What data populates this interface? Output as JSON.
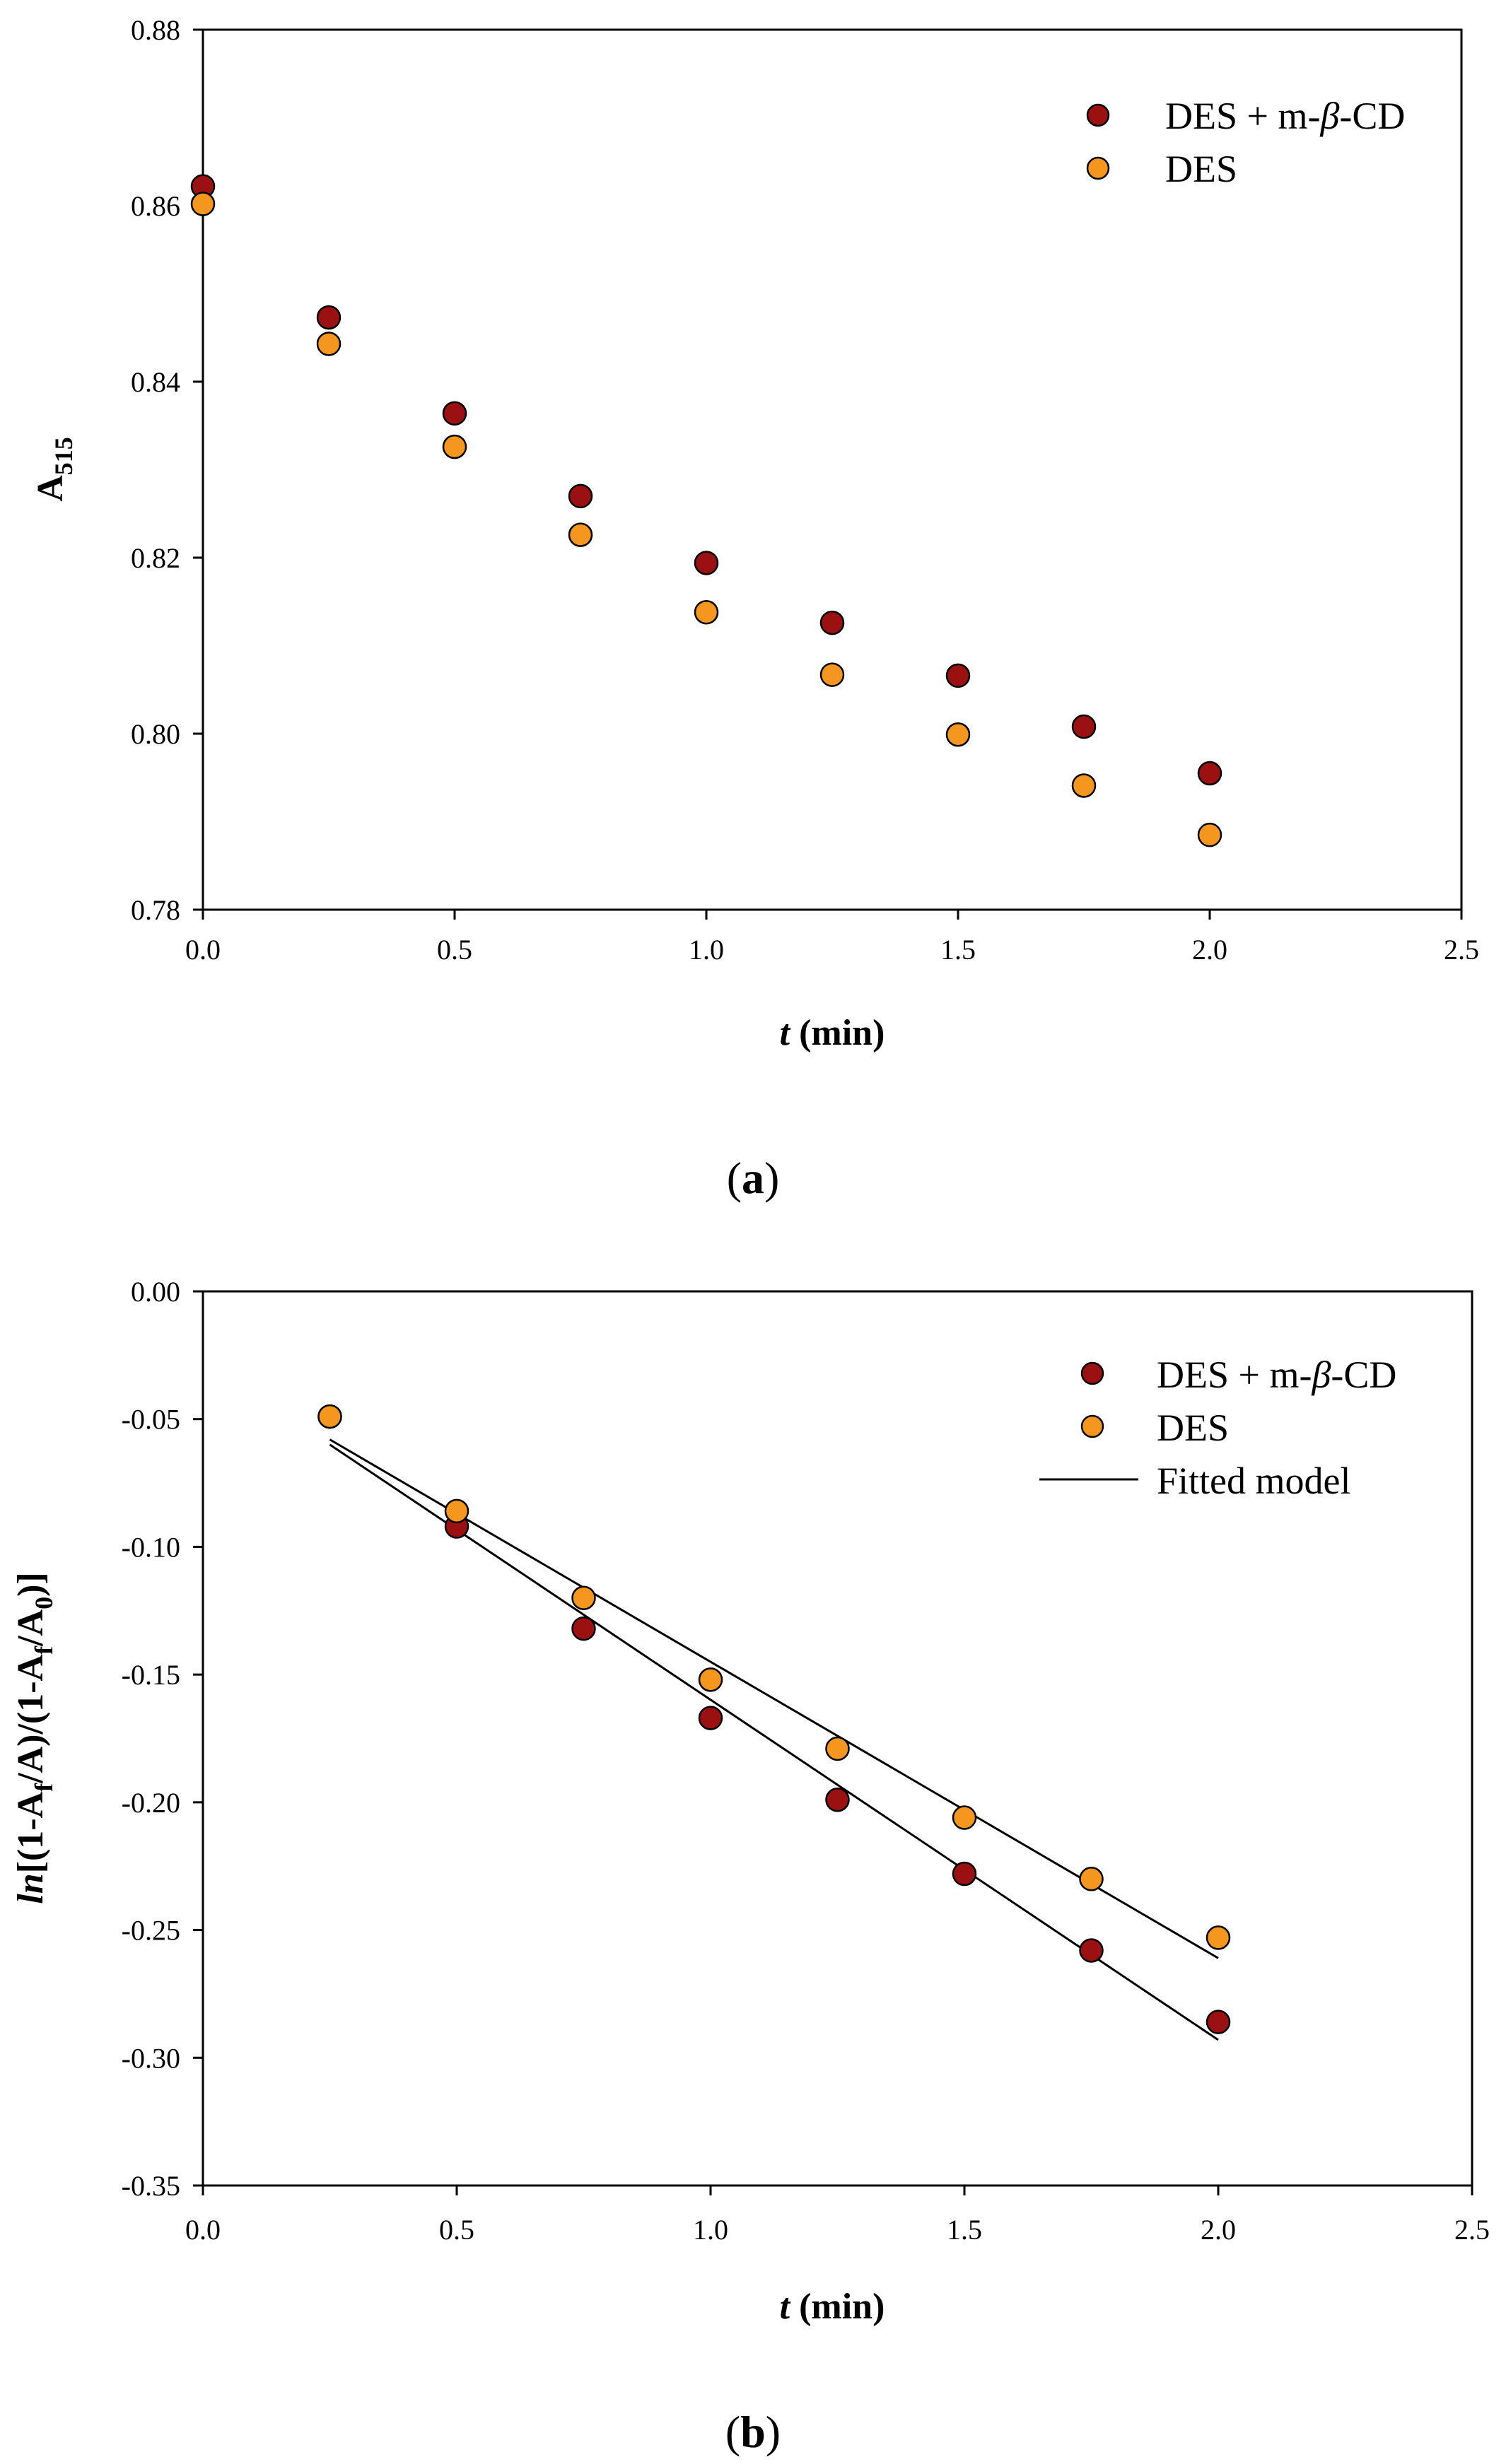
{
  "colors": {
    "series_dark": "#9b1111",
    "series_orange": "#f5961e",
    "marker_stroke": "#000000",
    "axis": "#000000",
    "fit_line": "#000000"
  },
  "chart_data": [
    {
      "type": "scatter",
      "caption_open": "(",
      "caption_letter": "a",
      "caption_close": ")",
      "xlabel_italic": "t",
      "xlabel_rest": " (min)",
      "ylabel_main": "A",
      "ylabel_sub": "515",
      "xlim": [
        0,
        2.5
      ],
      "ylim": [
        0.78,
        0.88
      ],
      "xticks": [
        "0.0",
        "0.5",
        "1.0",
        "1.5",
        "2.0",
        "2.5"
      ],
      "yticks": [
        "0.78",
        "0.80",
        "0.82",
        "0.84",
        "0.86",
        "0.88"
      ],
      "legend_position": "top-right",
      "x": [
        0,
        0.25,
        0.5,
        0.75,
        1.0,
        1.25,
        1.5,
        1.75,
        2.0
      ],
      "series": [
        {
          "name": "DES + m-β-CD",
          "legend_prefix": "DES + m-",
          "legend_greek": "β",
          "legend_suffix": "-CD",
          "color": "#9b1111",
          "values": [
            0.8622,
            0.8473,
            0.8364,
            0.827,
            0.8194,
            0.8126,
            0.8066,
            0.8008,
            0.7955
          ]
        },
        {
          "name": "DES",
          "legend_prefix": "DES",
          "legend_greek": "",
          "legend_suffix": "",
          "color": "#f5961e",
          "values": [
            0.8602,
            0.8443,
            0.8326,
            0.8226,
            0.8138,
            0.8067,
            0.7999,
            0.7941,
            0.7885
          ]
        }
      ]
    },
    {
      "type": "scatter",
      "caption_open": "(",
      "caption_letter": "b",
      "caption_close": ")",
      "xlabel_italic": "t",
      "xlabel_rest": " (min)",
      "ylabel_ln": "ln",
      "ylabel_p1": "[(1-A",
      "ylabel_s1": "f",
      "ylabel_p2": "/A)/(1-A",
      "ylabel_s2": "f",
      "ylabel_p3": "/A",
      "ylabel_s3": "0",
      "ylabel_p4": ")]",
      "xlim": [
        0,
        2.5
      ],
      "ylim": [
        -0.35,
        0.0
      ],
      "xticks": [
        "0.0",
        "0.5",
        "1.0",
        "1.5",
        "2.0",
        "2.5"
      ],
      "yticks": [
        "-0.35",
        "-0.30",
        "-0.25",
        "-0.20",
        "-0.15",
        "-0.10",
        "-0.05",
        "0.00"
      ],
      "legend_position": "top-right",
      "x": [
        0.25,
        0.5,
        0.75,
        1.0,
        1.25,
        1.5,
        1.75,
        2.0
      ],
      "series": [
        {
          "name": "DES + m-β-CD",
          "legend_prefix": "DES + m-",
          "legend_greek": "β",
          "legend_suffix": "-CD",
          "color": "#9b1111",
          "values": [
            -0.049,
            -0.092,
            -0.132,
            -0.167,
            -0.199,
            -0.228,
            -0.258,
            -0.286
          ],
          "fit": {
            "x": [
              0.25,
              2.0
            ],
            "y": [
              -0.06,
              -0.293
            ]
          }
        },
        {
          "name": "DES",
          "legend_prefix": "DES",
          "legend_greek": "",
          "legend_suffix": "",
          "color": "#f5961e",
          "values": [
            -0.049,
            -0.086,
            -0.12,
            -0.152,
            -0.179,
            -0.206,
            -0.23,
            -0.253
          ],
          "fit": {
            "x": [
              0.25,
              2.0
            ],
            "y": [
              -0.058,
              -0.261
            ]
          }
        }
      ],
      "fit_legend_label": "Fitted model"
    }
  ]
}
